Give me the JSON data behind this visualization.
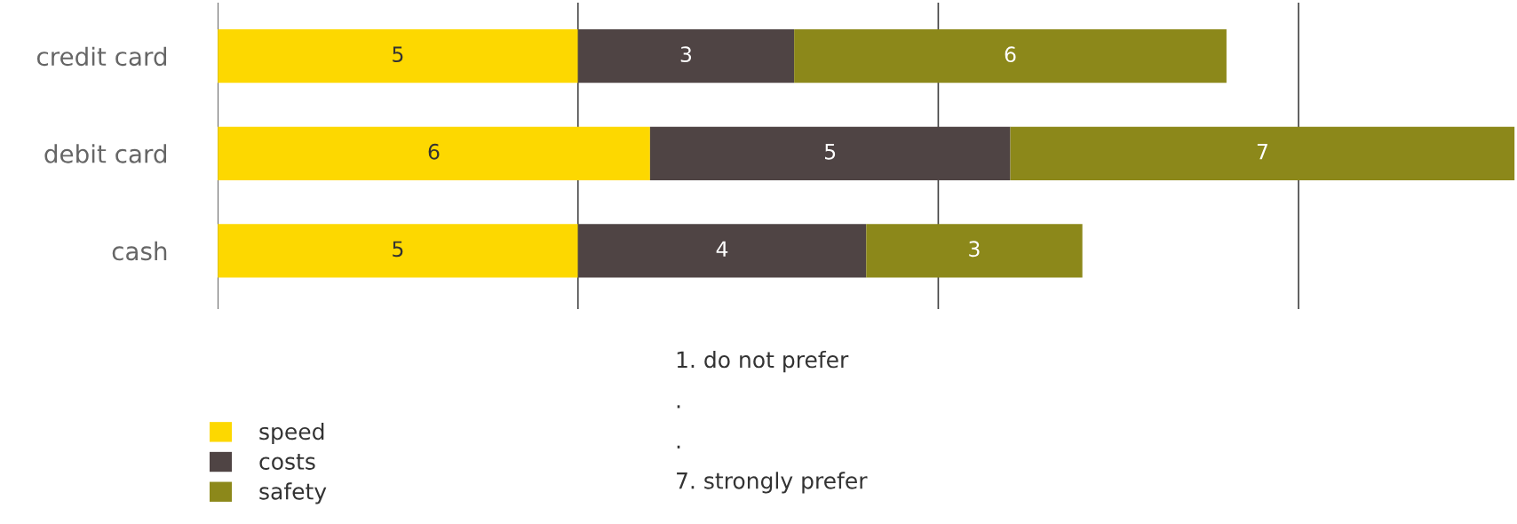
{
  "chart_data": {
    "type": "bar",
    "orientation": "horizontal",
    "stacked": true,
    "categories": [
      "credit card",
      "debit card",
      "cash"
    ],
    "series": [
      {
        "name": "speed",
        "color": "#fdd800",
        "values": [
          5,
          6,
          5
        ]
      },
      {
        "name": "costs",
        "color": "#4f4444",
        "values": [
          3,
          5,
          4
        ]
      },
      {
        "name": "safety",
        "color": "#8c881a",
        "values": [
          6,
          7,
          3
        ]
      }
    ],
    "xlim": [
      0,
      18
    ],
    "xticks": [
      {
        "value": 0,
        "label": null
      },
      {
        "value": 5,
        "label": null
      },
      {
        "value": 10,
        "label": null
      },
      {
        "value": 15,
        "label": null
      }
    ],
    "tick_labels": "y",
    "grid": "x",
    "data_labels": true,
    "legend": "bottom left",
    "annotations": [
      "1. do not prefer",
      ".",
      ".",
      "7. strongly prefer"
    ]
  }
}
